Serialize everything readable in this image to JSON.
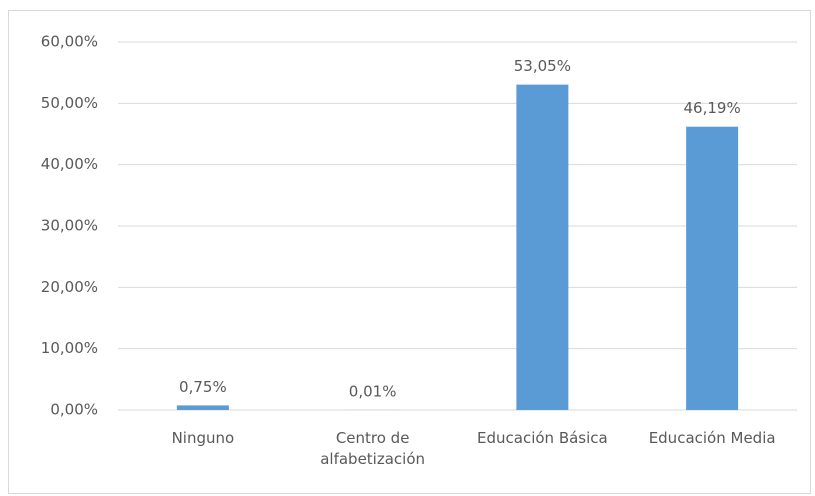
{
  "chart_data": {
    "type": "bar",
    "categories": [
      "Ninguno",
      "Centro de alfabetización",
      "Educación Básica",
      "Educación Media"
    ],
    "values": [
      0.75,
      0.01,
      53.05,
      46.19
    ],
    "value_labels": [
      "0,75%",
      "0,01%",
      "53,05%",
      "46,19%"
    ],
    "color": "#5b9bd5",
    "ylim": [
      0,
      60
    ],
    "yticks": [
      {
        "value": 0,
        "label": "0,00%"
      },
      {
        "value": 10,
        "label": "10,00%"
      },
      {
        "value": 20,
        "label": "20,00%"
      },
      {
        "value": 30,
        "label": "30,00%"
      },
      {
        "value": 40,
        "label": "40,00%"
      },
      {
        "value": 50,
        "label": "50,00%"
      },
      {
        "value": 60,
        "label": "60,00%"
      }
    ],
    "grid": true
  }
}
